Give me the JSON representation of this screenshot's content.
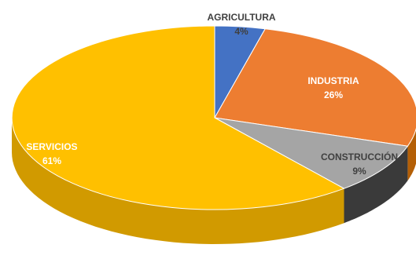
{
  "chart_data": {
    "type": "pie",
    "style": "3d",
    "title": "",
    "slices": [
      {
        "label": "AGRICULTURA",
        "value": 4,
        "value_label": "4%",
        "color": "#4472C4",
        "side_color": "#2F5597"
      },
      {
        "label": "INDUSTRIA",
        "value": 26,
        "value_label": "26%",
        "color": "#ED7D31",
        "side_color": "#B45F06"
      },
      {
        "label": "CONSTRUCCIÓN",
        "value": 9,
        "value_label": "9%",
        "color": "#A5A5A5",
        "side_color": "#3A3A3A"
      },
      {
        "label": "SERVICIOS",
        "value": 61,
        "value_label": "61%",
        "color": "#FFC000",
        "side_color": "#D19A00"
      }
    ]
  }
}
